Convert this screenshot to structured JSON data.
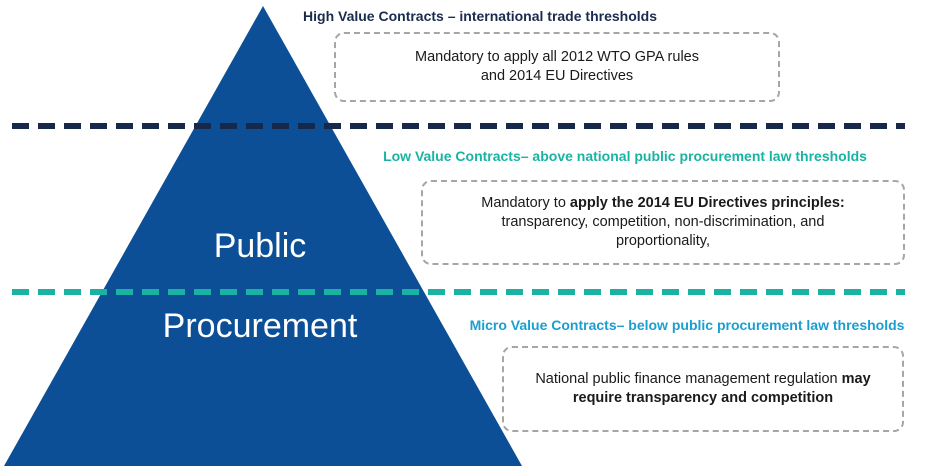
{
  "pyramid": {
    "line1": "Public",
    "line2": "Procurement",
    "fill_color": "#0d4f96"
  },
  "tiers": {
    "high": {
      "heading": "High Value Contracts – international trade thresholds",
      "box_line1": "Mandatory to apply all 2012 WTO GPA rules",
      "box_line2": "and 2014 EU Directives",
      "divider_color": "#17294a"
    },
    "low": {
      "heading": "Low Value Contracts– above national public procurement law thresholds",
      "box_prefix": "Mandatory to ",
      "box_bold": "apply the 2014 EU Directives principles:",
      "box_line2": "transparency, competition, non-discrimination, and",
      "box_line3": "proportionality,",
      "divider_color": "#1ab3a3"
    },
    "micro": {
      "heading": "Micro Value Contracts– below public procurement law thresholds",
      "box_prefix": "National public finance management regulation ",
      "box_bold1": "may",
      "box_bold2": "require transparency and competition"
    }
  }
}
